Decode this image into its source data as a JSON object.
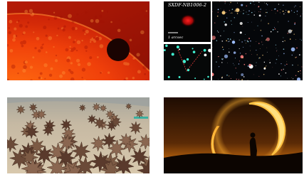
{
  "top_right_image": {
    "object_label": "SXDF-NB1006-2",
    "scale_label": "1 arcsec"
  }
}
